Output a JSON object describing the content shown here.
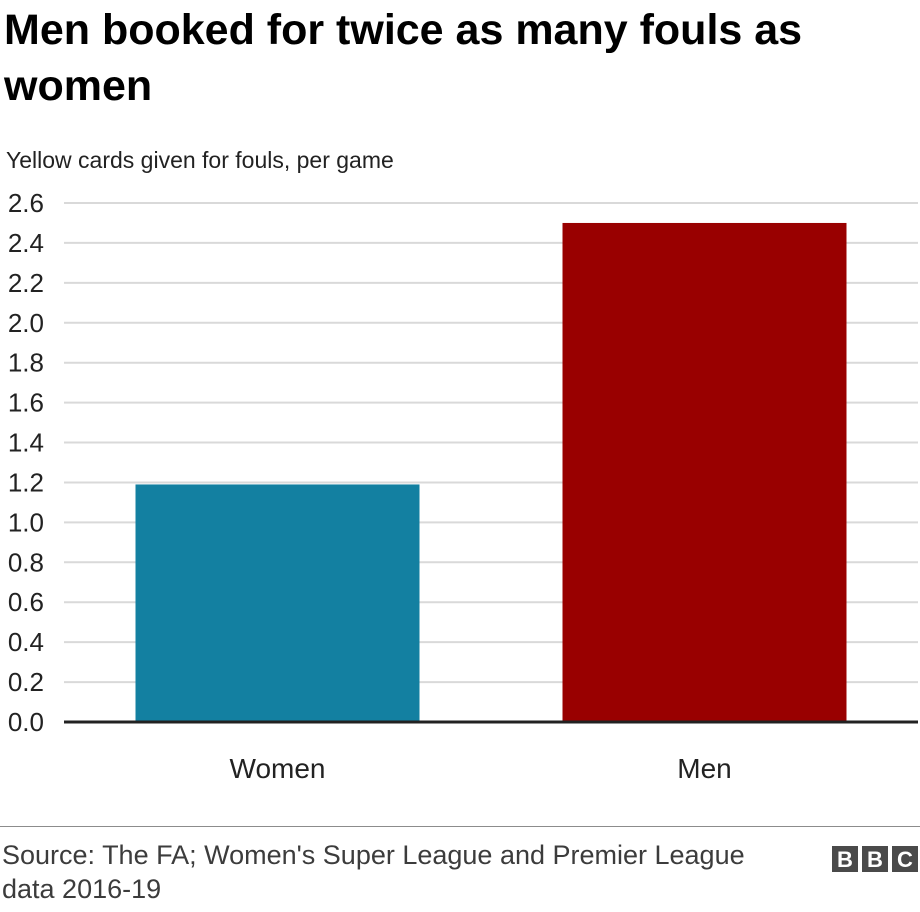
{
  "title": "Men booked for twice as many fouls as women",
  "subtitle": "Yellow cards given for fouls, per game",
  "source": "Source: The FA; Women's Super League and Premier League data 2016-19",
  "logo": {
    "letters": [
      "B",
      "B",
      "C"
    ]
  },
  "chart_data": {
    "type": "bar",
    "categories": [
      "Women",
      "Men"
    ],
    "values": [
      1.19,
      2.5
    ],
    "colors": [
      "#1380a1",
      "#990000"
    ],
    "ylim": [
      0,
      2.6
    ],
    "yticks": [
      "0.0",
      "0.2",
      "0.4",
      "0.6",
      "0.8",
      "1.0",
      "1.2",
      "1.4",
      "1.6",
      "1.8",
      "2.0",
      "2.2",
      "2.4",
      "2.6"
    ],
    "grid": true,
    "legend": "none"
  }
}
